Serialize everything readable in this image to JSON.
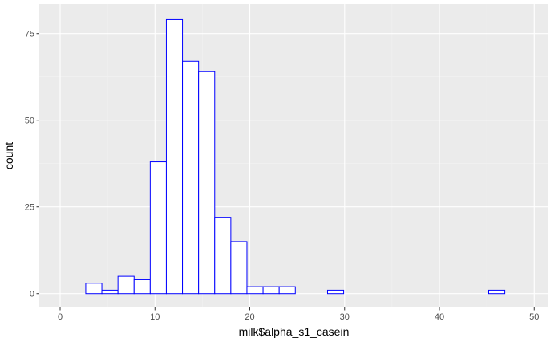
{
  "chart_data": {
    "type": "bar",
    "xlabel": "milk$alpha_s1_casein",
    "ylabel": "count",
    "xlim": [
      -2.2,
      51.5
    ],
    "ylim": [
      -4.0,
      83.5
    ],
    "x_ticks": [
      0,
      10,
      20,
      30,
      40,
      50
    ],
    "x_tick_labels": [
      "0",
      "10",
      "20",
      "30",
      "40",
      "50"
    ],
    "y_ticks": [
      0,
      25,
      50,
      75
    ],
    "y_tick_labels": [
      "0",
      "25",
      "50",
      "75"
    ],
    "grid": true,
    "bins": [
      {
        "xmin": 1.0,
        "xmax": 2.7,
        "count": 0
      },
      {
        "xmin": 2.7,
        "xmax": 4.4,
        "count": 3
      },
      {
        "xmin": 4.4,
        "xmax": 6.1,
        "count": 1
      },
      {
        "xmin": 6.1,
        "xmax": 7.8,
        "count": 5
      },
      {
        "xmin": 7.8,
        "xmax": 9.5,
        "count": 4
      },
      {
        "xmin": 9.5,
        "xmax": 11.2,
        "count": 38
      },
      {
        "xmin": 11.2,
        "xmax": 12.9,
        "count": 79
      },
      {
        "xmin": 12.9,
        "xmax": 14.6,
        "count": 67
      },
      {
        "xmin": 14.6,
        "xmax": 16.3,
        "count": 64
      },
      {
        "xmin": 16.3,
        "xmax": 18.0,
        "count": 22
      },
      {
        "xmin": 18.0,
        "xmax": 19.7,
        "count": 15
      },
      {
        "xmin": 19.7,
        "xmax": 21.4,
        "count": 2
      },
      {
        "xmin": 21.4,
        "xmax": 23.1,
        "count": 2
      },
      {
        "xmin": 23.1,
        "xmax": 24.8,
        "count": 2
      },
      {
        "xmin": 24.8,
        "xmax": 26.5,
        "count": 0
      },
      {
        "xmin": 26.5,
        "xmax": 28.2,
        "count": 0
      },
      {
        "xmin": 28.2,
        "xmax": 29.9,
        "count": 1
      },
      {
        "xmin": 29.9,
        "xmax": 31.6,
        "count": 0
      },
      {
        "xmin": 31.6,
        "xmax": 33.3,
        "count": 0
      },
      {
        "xmin": 33.3,
        "xmax": 35.0,
        "count": 0
      },
      {
        "xmin": 35.0,
        "xmax": 36.7,
        "count": 0
      },
      {
        "xmin": 36.7,
        "xmax": 38.4,
        "count": 0
      },
      {
        "xmin": 38.4,
        "xmax": 40.1,
        "count": 0
      },
      {
        "xmin": 40.1,
        "xmax": 41.8,
        "count": 0
      },
      {
        "xmin": 41.8,
        "xmax": 43.5,
        "count": 0
      },
      {
        "xmin": 43.5,
        "xmax": 45.2,
        "count": 0
      },
      {
        "xmin": 45.2,
        "xmax": 46.9,
        "count": 1
      },
      {
        "xmin": 46.9,
        "xmax": 48.6,
        "count": 0
      }
    ],
    "colors": {
      "bar_fill": "#ffffff",
      "bar_outline": "#0000ff",
      "panel_background": "#ebebeb",
      "grid_major": "#ffffff",
      "grid_minor": "#f2f2f2",
      "tick": "#333333"
    }
  }
}
